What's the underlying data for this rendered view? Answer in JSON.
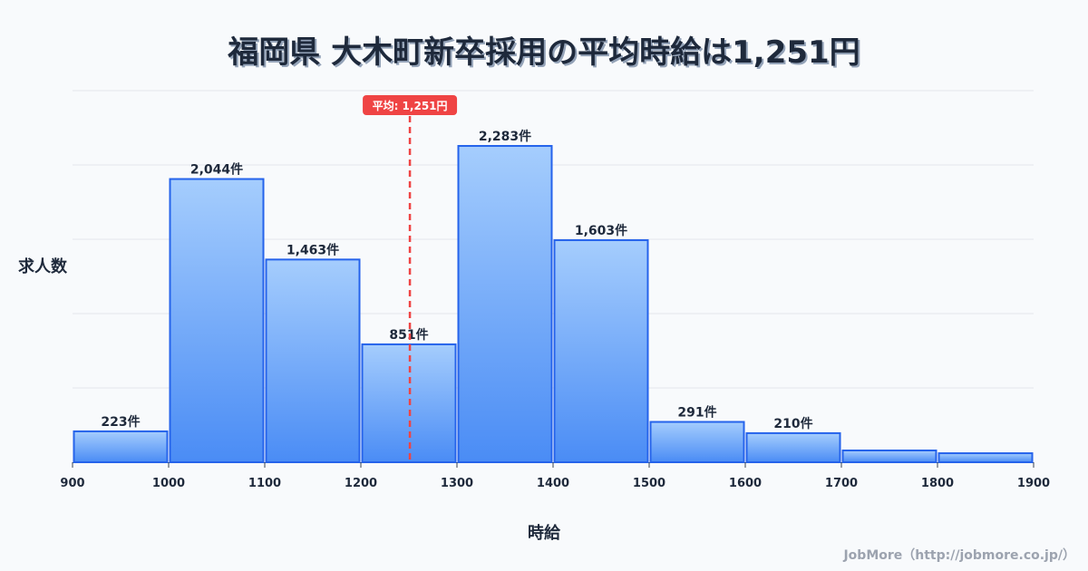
{
  "chart_data": {
    "type": "bar",
    "title": "福岡県 大木町新卒採用の平均時給は1,251円",
    "xlabel": "時給",
    "ylabel": "求人数",
    "bin_edges": [
      900,
      1000,
      1100,
      1200,
      1300,
      1400,
      1500,
      1600,
      1700,
      1800,
      1900
    ],
    "tick_labels": [
      "900",
      "1000",
      "1100",
      "1200",
      "1300",
      "1400",
      "1500",
      "1600",
      "1700",
      "1800",
      "1900"
    ],
    "values": [
      223,
      2044,
      1463,
      851,
      2283,
      1603,
      291,
      210,
      85,
      65
    ],
    "data_labels": [
      "223件",
      "2,044件",
      "1,463件",
      "851件",
      "2,283件",
      "1,603件",
      "291件",
      "210件",
      "",
      ""
    ],
    "ylim": [
      0,
      2682
    ],
    "grid": true,
    "mean": {
      "value": 1251,
      "label": "平均: 1,251円",
      "color": "#ef4444"
    },
    "bar_color": "#60a5fa",
    "bar_border": "#2563eb"
  },
  "credit": "JobMore（http://jobmore.co.jp/）"
}
